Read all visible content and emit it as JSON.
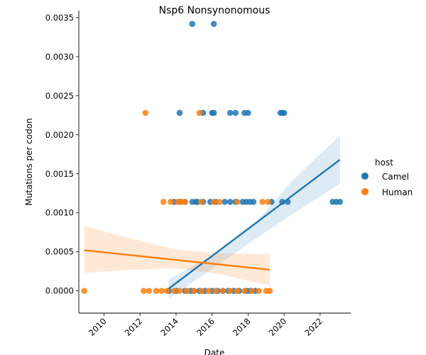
{
  "chart_data": {
    "type": "scatter",
    "title": "Nsp6 Nonsynonomous",
    "xlabel": "Date",
    "ylabel": "Mutations per codon",
    "xlim": [
      2008.6,
      2023.7
    ],
    "ylim": [
      -0.000285,
      0.00359
    ],
    "x_ticks": [
      2010,
      2012,
      2014,
      2016,
      2018,
      2020,
      2022
    ],
    "x_tick_labels": [
      "2010",
      "2012",
      "2014",
      "2016",
      "2018",
      "2020",
      "2022"
    ],
    "y_ticks": [
      0,
      0.0005,
      0.001,
      0.0015,
      0.002,
      0.0025,
      0.003,
      0.0035
    ],
    "y_tick_labels": [
      "0.0000",
      "0.0005",
      "0.0010",
      "0.0015",
      "0.0020",
      "0.0025",
      "0.0030",
      "0.0035"
    ],
    "legend": {
      "title": "host",
      "position": "right",
      "entries": [
        "Camel",
        "Human"
      ]
    },
    "series": [
      {
        "name": "Camel",
        "color": "#1f77b4",
        "points": [
          [
            2014.9,
            0.00342
          ],
          [
            2016.1,
            0.00342
          ],
          [
            2014.2,
            0.00228
          ],
          [
            2015.5,
            0.00228
          ],
          [
            2016.0,
            0.00228
          ],
          [
            2016.1,
            0.00228
          ],
          [
            2017.0,
            0.00228
          ],
          [
            2017.3,
            0.00228
          ],
          [
            2017.8,
            0.00228
          ],
          [
            2018.0,
            0.00228
          ],
          [
            2019.8,
            0.00228
          ],
          [
            2019.9,
            0.00228
          ],
          [
            2020.0,
            0.00228
          ],
          [
            2013.9,
            0.00114
          ],
          [
            2014.2,
            0.00114
          ],
          [
            2014.5,
            0.00114
          ],
          [
            2014.9,
            0.00114
          ],
          [
            2015.1,
            0.00114
          ],
          [
            2015.2,
            0.00114
          ],
          [
            2015.5,
            0.00114
          ],
          [
            2015.9,
            0.00114
          ],
          [
            2016.2,
            0.00114
          ],
          [
            2016.7,
            0.00114
          ],
          [
            2017.0,
            0.00114
          ],
          [
            2017.3,
            0.00114
          ],
          [
            2017.7,
            0.00114
          ],
          [
            2017.9,
            0.00114
          ],
          [
            2018.1,
            0.00114
          ],
          [
            2018.3,
            0.00114
          ],
          [
            2019.3,
            0.00114
          ],
          [
            2019.9,
            0.00114
          ],
          [
            2020.2,
            0.00114
          ],
          [
            2022.7,
            0.00114
          ],
          [
            2022.9,
            0.00114
          ],
          [
            2023.1,
            0.00114
          ],
          [
            2013.6,
            0
          ],
          [
            2014.0,
            0
          ],
          [
            2014.5,
            0
          ],
          [
            2014.8,
            0
          ],
          [
            2015.0,
            0
          ],
          [
            2015.3,
            0
          ],
          [
            2015.6,
            0
          ],
          [
            2016.0,
            0
          ],
          [
            2016.3,
            0
          ],
          [
            2016.6,
            0
          ],
          [
            2016.9,
            0
          ],
          [
            2017.2,
            0
          ],
          [
            2017.5,
            0
          ],
          [
            2017.9,
            0
          ],
          [
            2018.1,
            0
          ],
          [
            2018.4,
            0
          ]
        ],
        "trend": {
          "x": [
            2013.6,
            2023.1
          ],
          "y": [
            3e-05,
            0.00168
          ]
        },
        "band_upper": [
          [
            2013.6,
            0.00015
          ],
          [
            2016.0,
            0.00045
          ],
          [
            2018.5,
            0.0009
          ],
          [
            2020.5,
            0.00142
          ],
          [
            2023.1,
            0.00199
          ]
        ],
        "band_lower": [
          [
            2013.6,
            -0.0001
          ],
          [
            2016.0,
            0.00028
          ],
          [
            2018.5,
            0.00068
          ],
          [
            2020.5,
            0.00099
          ],
          [
            2023.1,
            0.00137
          ]
        ]
      },
      {
        "name": "Human",
        "color": "#ff7f0e",
        "points": [
          [
            2008.9,
            0
          ],
          [
            2012.3,
            0.00228
          ],
          [
            2015.3,
            0.00228
          ],
          [
            2013.3,
            0.00114
          ],
          [
            2013.7,
            0.00114
          ],
          [
            2014.1,
            0.00114
          ],
          [
            2014.3,
            0.00114
          ],
          [
            2014.5,
            0.00114
          ],
          [
            2015.4,
            0.00114
          ],
          [
            2016.1,
            0.00114
          ],
          [
            2016.4,
            0.00114
          ],
          [
            2017.4,
            0.00114
          ],
          [
            2018.8,
            0.00114
          ],
          [
            2019.1,
            0.00114
          ],
          [
            2012.2,
            0
          ],
          [
            2012.5,
            0
          ],
          [
            2012.9,
            0
          ],
          [
            2013.2,
            0
          ],
          [
            2013.5,
            0
          ],
          [
            2013.9,
            0
          ],
          [
            2014.2,
            0
          ],
          [
            2014.6,
            0
          ],
          [
            2015.0,
            0
          ],
          [
            2015.4,
            0
          ],
          [
            2015.8,
            0
          ],
          [
            2016.2,
            0
          ],
          [
            2016.6,
            0
          ],
          [
            2017.0,
            0
          ],
          [
            2017.4,
            0
          ],
          [
            2017.8,
            0
          ],
          [
            2018.2,
            0
          ],
          [
            2018.6,
            0
          ],
          [
            2019.0,
            0
          ],
          [
            2019.2,
            0
          ]
        ],
        "trend": {
          "x": [
            2008.9,
            2019.2
          ],
          "y": [
            0.00052,
            0.00027
          ]
        },
        "band_upper": [
          [
            2008.9,
            0.00083
          ],
          [
            2011.5,
            0.00067
          ],
          [
            2014.0,
            0.00053
          ],
          [
            2016.5,
            0.00048
          ],
          [
            2019.2,
            0.00047
          ]
        ],
        "band_lower": [
          [
            2008.9,
            0.00023
          ],
          [
            2011.5,
            0.00027
          ],
          [
            2014.0,
            0.00029
          ],
          [
            2016.5,
            0.00021
          ],
          [
            2019.2,
            7e-05
          ]
        ]
      }
    ]
  }
}
